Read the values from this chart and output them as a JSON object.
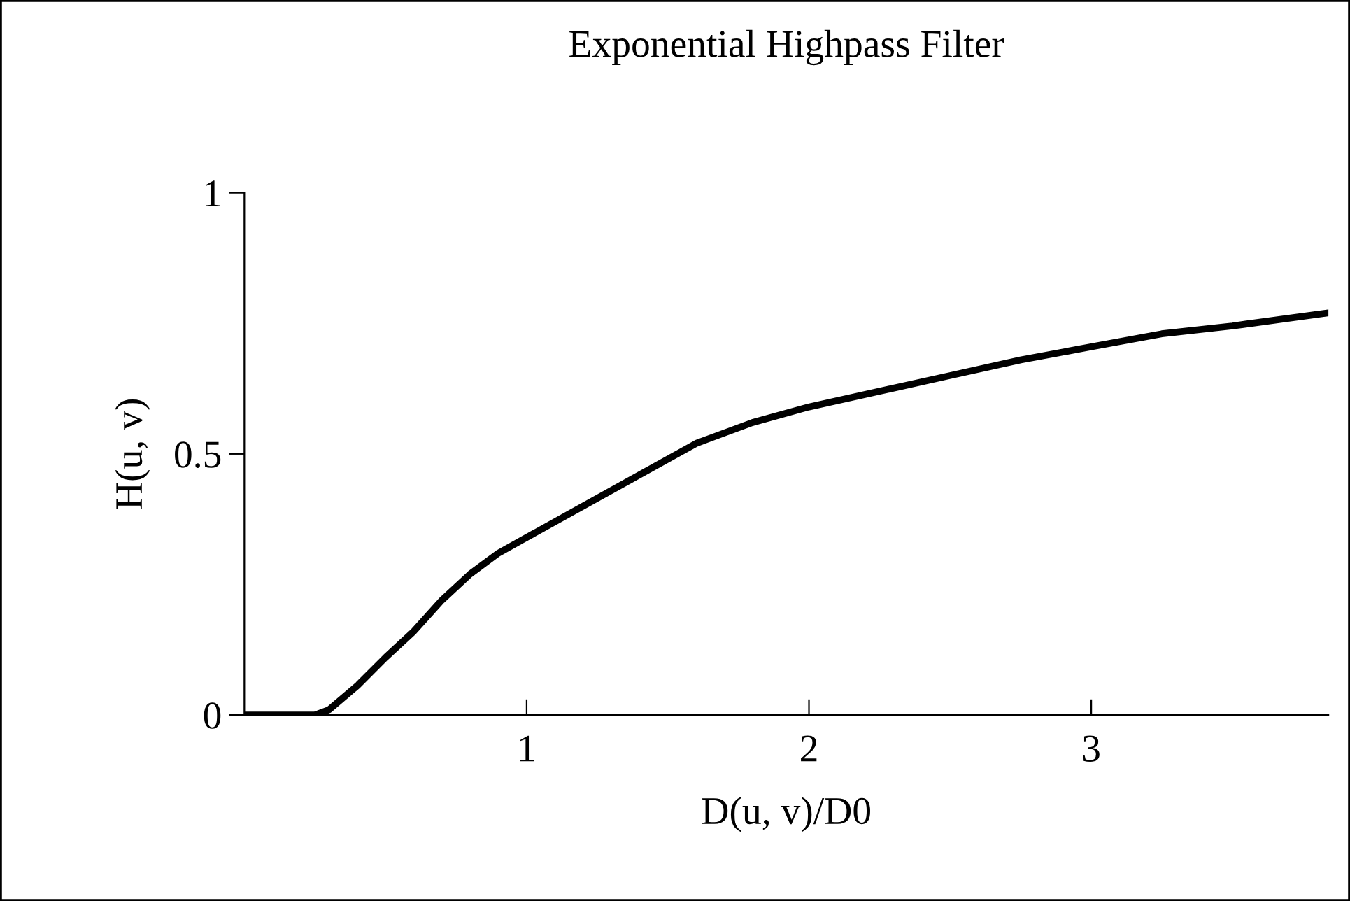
{
  "chart_data": {
    "type": "line",
    "title": "Exponential Highpass Filter",
    "xlabel": "D(u, v)/D0",
    "ylabel": "H(u, v)",
    "x": [
      0,
      0.25,
      0.3,
      0.4,
      0.5,
      0.6,
      0.7,
      0.8,
      0.9,
      1.0,
      1.2,
      1.4,
      1.6,
      1.8,
      2.0,
      2.25,
      2.5,
      2.75,
      3.0,
      3.25,
      3.5,
      3.84
    ],
    "series": [
      {
        "color": "#000000",
        "values": [
          0,
          0,
          0.01,
          0.056,
          0.11,
          0.16,
          0.22,
          0.27,
          0.31,
          0.34,
          0.4,
          0.46,
          0.52,
          0.56,
          0.59,
          0.62,
          0.65,
          0.68,
          0.705,
          0.73,
          0.745,
          0.77
        ]
      }
    ],
    "xlim": [
      0,
      3.84
    ],
    "ylim": [
      0,
      1
    ],
    "xticks": [
      1,
      2,
      3
    ],
    "yticks": [
      0,
      0.5,
      1
    ],
    "grid": false,
    "marker": "none",
    "line_style": "solid"
  }
}
